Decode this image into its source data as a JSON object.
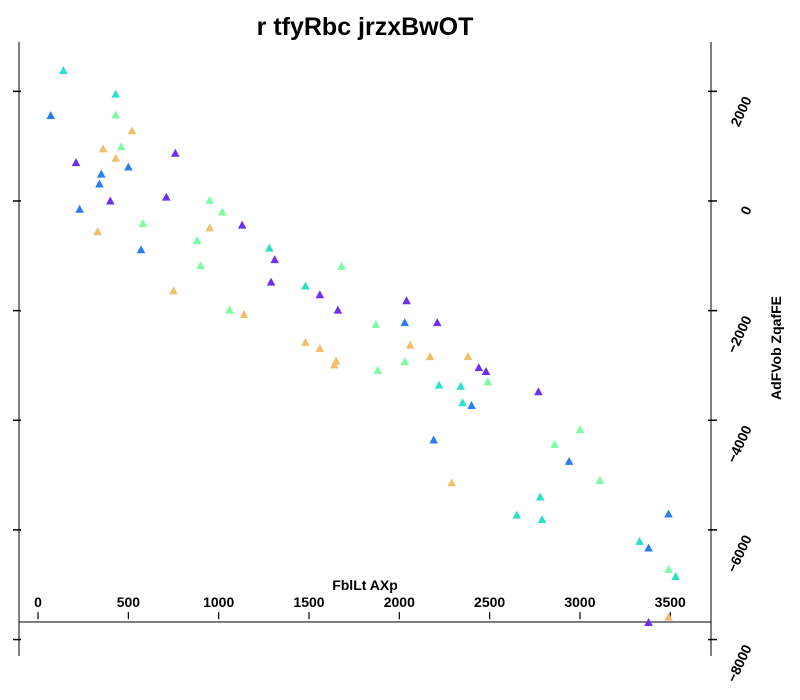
{
  "chart_data": {
    "type": "scatter",
    "title": "r tfyRbc jrzxBwOT",
    "xlabel": "FblLt AXp",
    "ylabel": "AdFVob ZqafFE",
    "xlim": [
      -100,
      3720
    ],
    "ylim": [
      -8300,
      2900
    ],
    "x_ticks": [
      0,
      500,
      1000,
      1500,
      2000,
      2500,
      3000,
      3500
    ],
    "x_tick_labels": [
      "0",
      "500",
      "1000",
      "1500",
      "2000",
      "2500",
      "3000",
      "3500"
    ],
    "y_ticks": [
      2000,
      0,
      -2000,
      -4000,
      -6000,
      -8000
    ],
    "y_tick_labels": [
      "2000",
      "0",
      "−2000",
      "−4000",
      "−6000",
      "−8000"
    ],
    "x_axis_at_y": -7500,
    "y_axis_position": "right",
    "grid": false,
    "legend": "none",
    "marker": "triangle",
    "colors": {
      "blue": "#2a7ff0",
      "cyan": "#2ee0c8",
      "green": "#7dfca4",
      "orange": "#f3be6a",
      "purple": "#6e30f0"
    },
    "series": [
      {
        "color": "#2a7ff0",
        "points": [
          [
            70,
            1560
          ],
          [
            230,
            -150
          ],
          [
            340,
            310
          ],
          [
            350,
            490
          ],
          [
            500,
            620
          ],
          [
            570,
            -890
          ],
          [
            2030,
            -2220
          ],
          [
            2190,
            -4360
          ],
          [
            2400,
            -3730
          ],
          [
            2940,
            -4750
          ],
          [
            3490,
            -5710
          ],
          [
            3380,
            -6330
          ]
        ]
      },
      {
        "color": "#2ee0c8",
        "points": [
          [
            140,
            2380
          ],
          [
            430,
            1950
          ],
          [
            1280,
            -860
          ],
          [
            1480,
            -1550
          ],
          [
            2220,
            -3360
          ],
          [
            2340,
            -3380
          ],
          [
            2350,
            -3680
          ],
          [
            2650,
            -5730
          ],
          [
            2780,
            -5400
          ],
          [
            2790,
            -5810
          ],
          [
            3330,
            -6210
          ],
          [
            3530,
            -6850
          ]
        ]
      },
      {
        "color": "#7dfca4",
        "points": [
          [
            430,
            1570
          ],
          [
            460,
            990
          ],
          [
            580,
            -410
          ],
          [
            880,
            -720
          ],
          [
            900,
            -1180
          ],
          [
            950,
            10
          ],
          [
            1020,
            -200
          ],
          [
            1060,
            -1990
          ],
          [
            1680,
            -1190
          ],
          [
            1870,
            -2250
          ],
          [
            1880,
            -3090
          ],
          [
            2030,
            -2930
          ],
          [
            2490,
            -3300
          ],
          [
            2860,
            -4440
          ],
          [
            3000,
            -4170
          ],
          [
            3110,
            -5100
          ],
          [
            3490,
            -6720
          ]
        ]
      },
      {
        "color": "#f3be6a",
        "points": [
          [
            330,
            -560
          ],
          [
            360,
            950
          ],
          [
            430,
            780
          ],
          [
            520,
            1280
          ],
          [
            750,
            -1640
          ],
          [
            950,
            -490
          ],
          [
            1140,
            -2070
          ],
          [
            1480,
            -2580
          ],
          [
            1560,
            -2690
          ],
          [
            1640,
            -2990
          ],
          [
            1650,
            -2920
          ],
          [
            2060,
            -2630
          ],
          [
            2170,
            -2840
          ],
          [
            2290,
            -5140
          ],
          [
            2380,
            -2840
          ],
          [
            3490,
            -7590
          ]
        ]
      },
      {
        "color": "#6e30f0",
        "points": [
          [
            210,
            700
          ],
          [
            400,
            0
          ],
          [
            710,
            70
          ],
          [
            760,
            870
          ],
          [
            1130,
            -440
          ],
          [
            1290,
            -1480
          ],
          [
            1310,
            -1070
          ],
          [
            1560,
            -1710
          ],
          [
            1660,
            -1990
          ],
          [
            2040,
            -1820
          ],
          [
            2210,
            -2220
          ],
          [
            2440,
            -3040
          ],
          [
            2480,
            -3110
          ],
          [
            2770,
            -3480
          ],
          [
            3380,
            -7690
          ]
        ]
      }
    ]
  }
}
